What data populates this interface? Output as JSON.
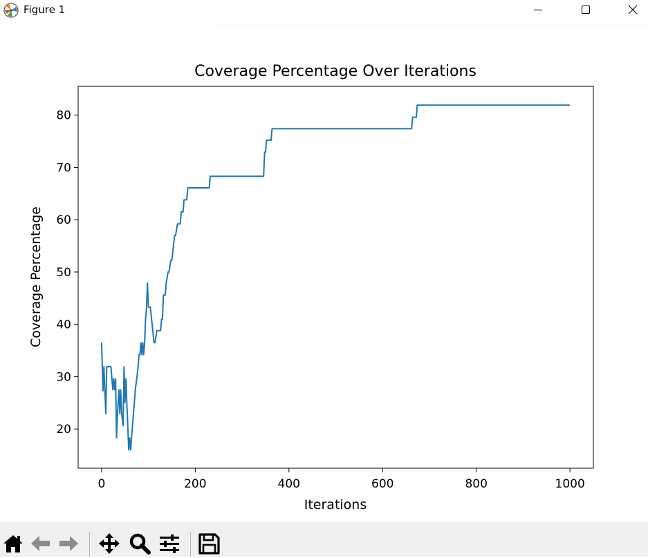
{
  "window": {
    "title": "Figure 1",
    "icons": [
      "app-icon",
      "minimize-icon",
      "maximize-icon",
      "close-icon"
    ]
  },
  "toolbar": {
    "icons": [
      "home-icon",
      "back-icon",
      "forward-icon",
      "pan-icon",
      "zoom-icon",
      "configure-subplots-icon",
      "save-icon"
    ]
  },
  "chart_data": {
    "type": "line",
    "title": "Coverage Percentage Over Iterations",
    "xlabel": "Iterations",
    "ylabel": "Coverage Percentage",
    "xlim": [
      -50,
      1050
    ],
    "ylim": [
      12.5,
      85.5
    ],
    "xticks": [
      0,
      200,
      400,
      600,
      800,
      1000
    ],
    "yticks": [
      20,
      30,
      40,
      50,
      60,
      70,
      80
    ],
    "grid": false,
    "line_color": "#1f77b4",
    "series": [
      {
        "x": [
          0,
          3,
          5,
          7,
          9,
          11,
          13,
          16,
          20,
          24,
          26,
          28,
          30,
          32,
          34,
          37,
          39,
          41,
          43,
          46,
          48,
          50,
          52,
          54,
          56,
          58,
          60,
          62,
          64,
          66,
          68,
          70,
          72,
          75,
          78,
          80,
          82,
          84,
          86,
          88,
          90,
          92,
          94,
          96,
          98,
          100,
          102,
          104,
          108,
          112,
          114,
          118,
          120,
          126,
          128,
          130,
          132,
          136,
          138,
          142,
          144,
          148,
          150,
          156,
          158,
          162,
          164,
          168,
          170,
          174,
          176,
          182,
          184,
          188,
          190,
          194,
          198,
          200,
          202,
          230,
          232,
          346,
          348,
          350,
          352,
          354,
          356,
          360,
          362,
          364,
          366,
          662,
          664,
          672,
          674,
          676,
          678,
          1000
        ],
        "y": [
          36.5,
          27.3,
          31.9,
          27.5,
          22.9,
          31.9,
          31.9,
          31.9,
          31.9,
          27.5,
          29.6,
          27.5,
          29.6,
          18.3,
          22.9,
          27.5,
          22.9,
          27.5,
          22.9,
          20.6,
          31.9,
          25.0,
          29.6,
          25.0,
          20.6,
          16.0,
          18.3,
          16.0,
          18.3,
          20.6,
          22.9,
          25.0,
          27.5,
          29.6,
          31.9,
          34.2,
          34.2,
          36.5,
          34.2,
          36.5,
          34.2,
          36.5,
          41.0,
          43.3,
          47.9,
          43.3,
          43.3,
          43.3,
          40.0,
          36.5,
          36.5,
          38.8,
          38.8,
          38.8,
          41.0,
          41.0,
          45.6,
          45.6,
          47.9,
          50.0,
          50.0,
          52.3,
          52.3,
          57.0,
          57.0,
          59.2,
          59.2,
          59.2,
          61.5,
          61.5,
          63.8,
          63.8,
          66.1,
          66.1,
          66.1,
          66.1,
          66.1,
          66.1,
          66.1,
          66.1,
          68.3,
          68.3,
          72.9,
          72.9,
          75.2,
          75.2,
          75.2,
          75.2,
          75.2,
          77.4,
          77.4,
          77.4,
          79.6,
          79.6,
          81.9,
          81.9,
          81.9,
          81.9
        ]
      }
    ]
  }
}
